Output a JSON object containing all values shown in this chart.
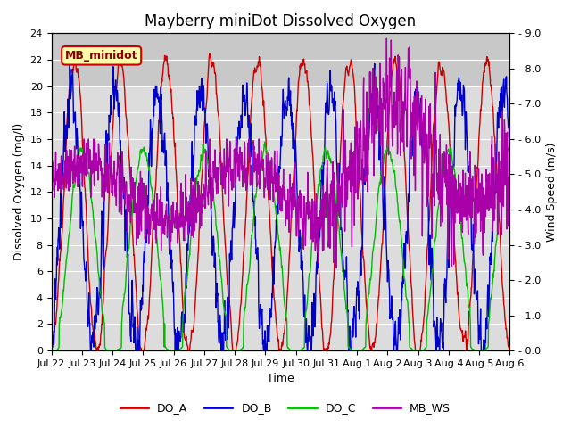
{
  "title": "Mayberry miniDot Dissolved Oxygen",
  "ylabel_left": "Dissolved Oxygen (mg/l)",
  "ylabel_right": "Wind Speed (m/s)",
  "xlabel": "Time",
  "ylim_left": [
    0,
    24
  ],
  "ylim_right": [
    0.0,
    9.0
  ],
  "yticks_left": [
    0,
    2,
    4,
    6,
    8,
    10,
    12,
    14,
    16,
    18,
    20,
    22,
    24
  ],
  "yticks_right": [
    0.0,
    1.0,
    2.0,
    3.0,
    4.0,
    5.0,
    6.0,
    7.0,
    8.0,
    9.0
  ],
  "bg_color": "#dcdcdc",
  "fig_bg_color": "#ffffff",
  "line_colors": {
    "DO_A": "#cc0000",
    "DO_B": "#0000cc",
    "DO_C": "#00bb00",
    "MB_WS": "#aa00aa"
  },
  "line_widths": {
    "DO_A": 1.0,
    "DO_B": 1.0,
    "DO_C": 1.0,
    "MB_WS": 1.0
  },
  "annotation_text": "MB_minidot",
  "annotation_fontsize": 9,
  "annotation_bbox": {
    "boxstyle": "round,pad=0.3",
    "facecolor": "#ffffaa",
    "edgecolor": "#cc0000",
    "linewidth": 1.5
  },
  "legend_labels": [
    "DO_A",
    "DO_B",
    "DO_C",
    "MB_WS"
  ],
  "legend_colors": [
    "#cc0000",
    "#0000cc",
    "#00bb00",
    "#aa00aa"
  ],
  "tick_label_fontsize": 8,
  "axis_label_fontsize": 9,
  "title_fontsize": 12,
  "figsize": [
    6.4,
    4.8
  ],
  "dpi": 100
}
